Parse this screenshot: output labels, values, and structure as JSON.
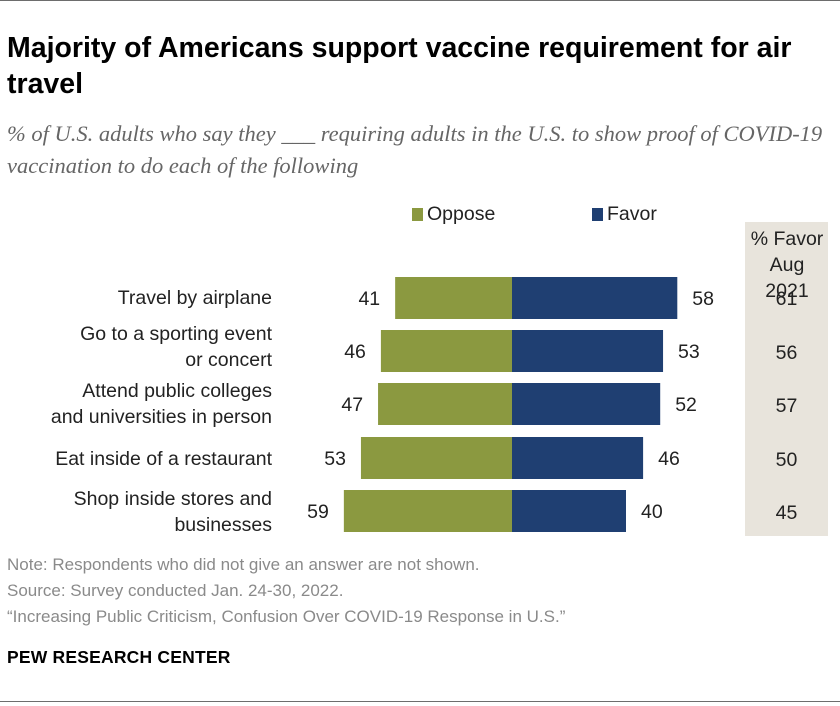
{
  "header": {
    "title": "Majority of Americans support vaccine requirement for air travel",
    "subtitle": "% of U.S. adults who say they ___ requiring adults in the U.S. to show proof of COVID-19 vaccination to do each of the following"
  },
  "legend": {
    "oppose": "Oppose",
    "favor": "Favor"
  },
  "colors": {
    "oppose": "#8b9940",
    "favor": "#1f3f72",
    "side_bg": "#e8e4dc",
    "rule": "#6d6d6d"
  },
  "side_column": {
    "header": "% Favor Aug 2021",
    "header_lines": [
      "% Favor",
      "Aug",
      "2021"
    ],
    "values": [
      "61",
      "56",
      "57",
      "50",
      "45"
    ]
  },
  "chart_data": {
    "type": "bar",
    "orientation": "horizontal-diverging",
    "title": "Majority of Americans support vaccine requirement for air travel",
    "subtitle": "% of U.S. adults who say they ___ requiring adults in the U.S. to show proof of COVID-19 vaccination to do each of the following",
    "categories": [
      "Travel by airplane",
      "Go to a sporting event or concert",
      "Attend public colleges and universities in person",
      "Eat inside of a restaurant",
      "Shop inside stores and businesses"
    ],
    "category_lines": [
      [
        "Travel by airplane"
      ],
      [
        "Go to a sporting event",
        "or concert"
      ],
      [
        "Attend public colleges",
        "and universities in person"
      ],
      [
        "Eat inside of a restaurant"
      ],
      [
        "Shop inside stores and",
        "businesses"
      ]
    ],
    "series": [
      {
        "name": "Oppose",
        "values": [
          41,
          46,
          47,
          53,
          59
        ]
      },
      {
        "name": "Favor",
        "values": [
          58,
          53,
          52,
          46,
          40
        ]
      }
    ],
    "comparison": {
      "name": "% Favor Aug 2021",
      "values": [
        61,
        56,
        57,
        50,
        45
      ]
    },
    "xlabel": "",
    "ylabel": "",
    "grid": false,
    "legend_position": "top"
  },
  "footer": {
    "notes": [
      "Note: Respondents who did not give an answer are not shown.",
      "Source: Survey conducted Jan. 24-30, 2022.",
      "“Increasing Public Criticism, Confusion Over COVID-19 Response in U.S.”"
    ],
    "brand": "PEW RESEARCH CENTER"
  }
}
